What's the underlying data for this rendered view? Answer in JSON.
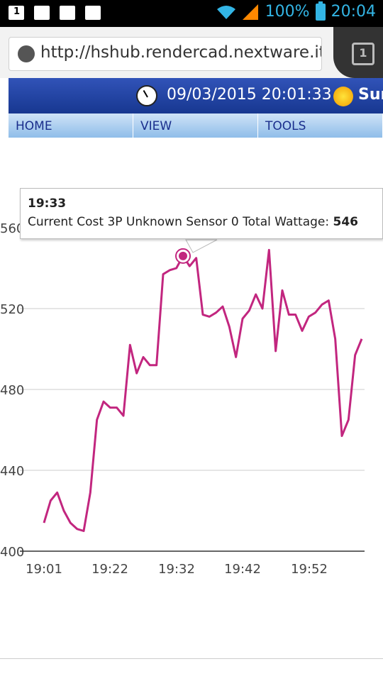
{
  "status_bar": {
    "battery": "100%",
    "time": "20:04"
  },
  "browser": {
    "url": "http://hshub.rendercad.nextware.it",
    "tab_count": "1"
  },
  "site_header": {
    "datetime": "09/03/2015 20:01:33",
    "sun_label": "Sur"
  },
  "nav": {
    "home": "HOME",
    "view": "VIEW",
    "tools": "TOOLS"
  },
  "tooltip": {
    "time": "19:33",
    "series_label": "Current Cost 3P Unknown Sensor 0 Total Wattage:",
    "value": "546"
  },
  "colors": {
    "series": "#c2267f",
    "header": "#1f3f9e",
    "nav": "#a9cdef"
  },
  "chart_data": {
    "type": "line",
    "title": "",
    "xlabel": "",
    "ylabel": "",
    "ylim": [
      400,
      560
    ],
    "yticks": [
      "400",
      "440",
      "480",
      "520",
      "560"
    ],
    "xticks": [
      "19:01",
      "19:22",
      "19:32",
      "19:42",
      "19:52"
    ],
    "grid": true,
    "series": [
      {
        "values": [
          414,
          425,
          429,
          420,
          414,
          411,
          410,
          429,
          465,
          474,
          471,
          471,
          467,
          502,
          488,
          496,
          492,
          492,
          537,
          539,
          540,
          546,
          541,
          545,
          517,
          516,
          518,
          521,
          511,
          496,
          515,
          519,
          527,
          520,
          549,
          499,
          529,
          517,
          517,
          509,
          516,
          518,
          522,
          524,
          505,
          457,
          465,
          497,
          505
        ]
      }
    ]
  }
}
